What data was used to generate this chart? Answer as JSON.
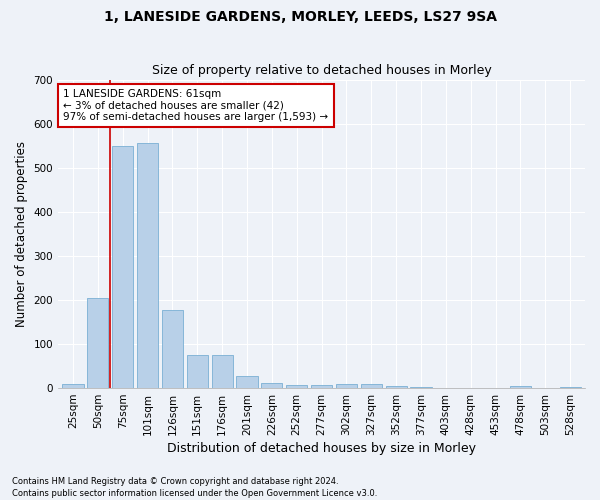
{
  "title": "1, LANESIDE GARDENS, MORLEY, LEEDS, LS27 9SA",
  "subtitle": "Size of property relative to detached houses in Morley",
  "xlabel": "Distribution of detached houses by size in Morley",
  "ylabel": "Number of detached properties",
  "categories": [
    "25sqm",
    "50sqm",
    "75sqm",
    "101sqm",
    "126sqm",
    "151sqm",
    "176sqm",
    "201sqm",
    "226sqm",
    "252sqm",
    "277sqm",
    "302sqm",
    "327sqm",
    "352sqm",
    "377sqm",
    "403sqm",
    "428sqm",
    "453sqm",
    "478sqm",
    "503sqm",
    "528sqm"
  ],
  "values": [
    10,
    205,
    550,
    557,
    178,
    76,
    76,
    28,
    11,
    7,
    7,
    9,
    9,
    5,
    2,
    0,
    0,
    0,
    5,
    0,
    2
  ],
  "bar_color": "#b8d0e8",
  "bar_edge_color": "#7aafd4",
  "vline_x": 1.48,
  "vline_color": "#cc0000",
  "annotation_text": "1 LANESIDE GARDENS: 61sqm\n← 3% of detached houses are smaller (42)\n97% of semi-detached houses are larger (1,593) →",
  "annotation_box_color": "#ffffff",
  "annotation_box_edge_color": "#cc0000",
  "ylim": [
    0,
    700
  ],
  "yticks": [
    0,
    100,
    200,
    300,
    400,
    500,
    600,
    700
  ],
  "footnote1": "Contains HM Land Registry data © Crown copyright and database right 2024.",
  "footnote2": "Contains public sector information licensed under the Open Government Licence v3.0.",
  "background_color": "#eef2f8",
  "grid_color": "#ffffff",
  "title_fontsize": 10,
  "subtitle_fontsize": 9,
  "axis_label_fontsize": 8.5,
  "tick_fontsize": 7.5,
  "footnote_fontsize": 6.0
}
